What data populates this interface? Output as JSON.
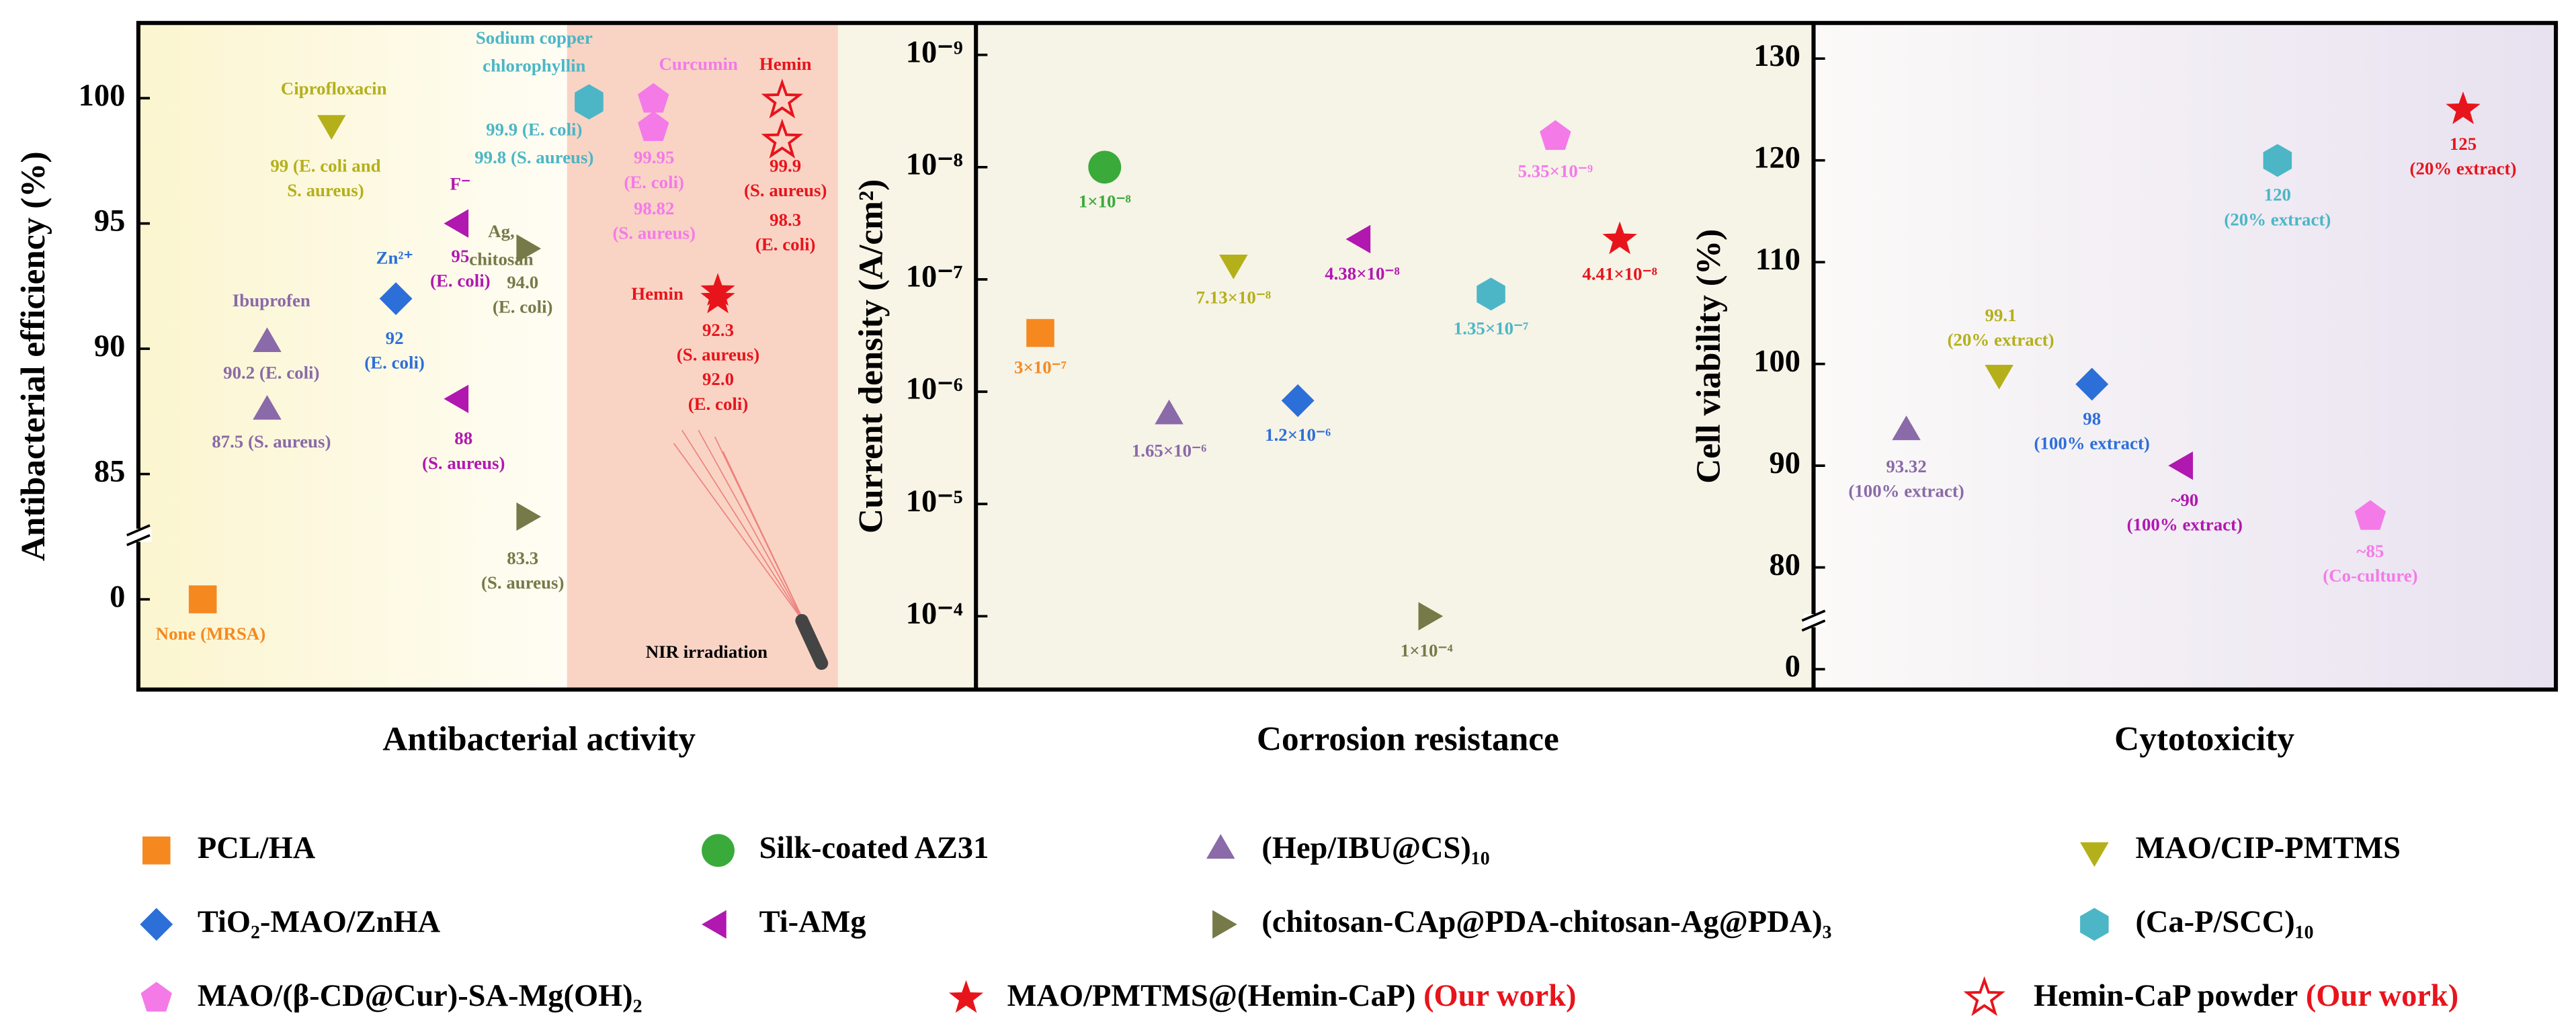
{
  "legend": [
    {
      "name": "PCL/HA",
      "color": "#f5891f",
      "marker": "square"
    },
    {
      "name": "Silk-coated AZ31",
      "color": "#3aaa3a",
      "marker": "circle"
    },
    {
      "name": "(Hep/IBU@CS)₁₀",
      "color": "#8a6aa8",
      "marker": "triangle-up"
    },
    {
      "name": "MAO/CIP-PMTMS",
      "color": "#b4b01a",
      "marker": "triangle-down"
    },
    {
      "name": "TiO₂-MAO/ZnHA",
      "color": "#2d6fd8",
      "marker": "diamond"
    },
    {
      "name": "Ti-AMg",
      "color": "#b018b0",
      "marker": "triangle-left"
    },
    {
      "name": "(chitosan-CAp@PDA-chitosan-Ag@PDA)₃",
      "color": "#767a48",
      "marker": "triangle-right"
    },
    {
      "name": "(Ca-P/SCC)₁₀",
      "color": "#4cb6c6",
      "marker": "hexagon"
    },
    {
      "name": "MAO/(β-CD@Cur)-SA-Mg(OH)₂",
      "color": "#f47ae8",
      "marker": "pentagon"
    },
    {
      "name": "MAO/PMTMS@(Hemin-CaP)",
      "color": "#e8141c",
      "marker": "star",
      "note": "(Our work)"
    },
    {
      "name": "Hemin-CaP powder",
      "color": "#e8141c",
      "marker": "star-open",
      "note": "(Our work)"
    }
  ],
  "chart_data": [
    {
      "type": "scatter",
      "xlabel": "Antibacterial activity",
      "ylabel": "Antibacterial efficiency (%)",
      "ylim": [
        -3.6,
        103
      ],
      "ybreak": [
        0,
        80
      ],
      "yticks": [
        0,
        85,
        90,
        95,
        100
      ],
      "annotation": "NIR irradiation",
      "series": [
        {
          "name": "PCL/HA",
          "values": [
            0
          ],
          "value_labels": [
            [
              "None (MRSA)"
            ]
          ]
        },
        {
          "name": "(Hep/IBU@CS)₁₀",
          "tag": [
            "Ibuprofen"
          ],
          "values": [
            90.2,
            87.5
          ],
          "value_labels": [
            [
              "90.2 (E. coli)"
            ],
            [
              "87.5 (S. aureus)"
            ]
          ]
        },
        {
          "name": "MAO/CIP-PMTMS",
          "tag": [
            "Ciprofloxacin"
          ],
          "values": [
            99
          ],
          "value_labels": [
            [
              "99 (E. coli and",
              "S. aureus)"
            ]
          ]
        },
        {
          "name": "TiO₂-MAO/ZnHA",
          "tag": [
            "Zn²⁺"
          ],
          "values": [
            92
          ],
          "value_labels": [
            [
              "92",
              "(E. coli)"
            ]
          ]
        },
        {
          "name": "Ti-AMg",
          "tag": [
            "F⁻"
          ],
          "values": [
            95,
            88
          ],
          "value_labels": [
            [
              "95",
              "(E. coli)"
            ],
            [
              "88",
              "(S. aureus)"
            ]
          ]
        },
        {
          "name": "(chitosan-CAp@PDA-chitosan-Ag@PDA)₃",
          "tag": [
            "Ag,",
            "chitosan"
          ],
          "values": [
            94.0,
            83.3
          ],
          "value_labels": [
            [
              "94.0",
              "(E. coli)"
            ],
            [
              "83.3",
              "(S. aureus)"
            ]
          ]
        },
        {
          "name": "(Ca-P/SCC)₁₀",
          "tag": [
            "Sodium copper",
            "chlorophyllin"
          ],
          "values": [
            99.9,
            99.8
          ],
          "value_labels": [
            [
              "99.9 (E. coli)"
            ],
            [
              "99.8 (S. aureus)"
            ]
          ]
        },
        {
          "name": "MAO/(β-CD@Cur)-SA-Mg(OH)₂",
          "tag": [
            "Curcumin"
          ],
          "values": [
            99.95,
            98.82
          ],
          "value_labels": [
            [
              "99.95",
              "(E. coli)"
            ],
            [
              "98.82",
              "(S. aureus)"
            ]
          ]
        },
        {
          "name": "MAO/PMTMS@(Hemin-CaP)",
          "tag": [
            "Hemin"
          ],
          "values": [
            92.3,
            92.0
          ],
          "value_labels": [
            [
              "92.3",
              "(S. aureus)"
            ],
            [
              "92.0",
              "(E. coli)"
            ]
          ]
        },
        {
          "name": "Hemin-CaP powder",
          "tag": [
            "Hemin"
          ],
          "values": [
            99.9,
            98.3
          ],
          "value_labels": [
            [
              "99.9",
              "(S. aureus)"
            ],
            [
              "98.3",
              "(E. coli)"
            ]
          ]
        }
      ]
    },
    {
      "type": "scatter",
      "xlabel": "Corrosion resistance",
      "ylabel": "Current density (A/cm²)",
      "ylog": true,
      "yinvert": true,
      "ylim": [
        5.2e-10,
        0.00045
      ],
      "yticks": [
        {
          "value": 1e-09,
          "label": "10⁻⁹"
        },
        {
          "value": 1e-08,
          "label": "10⁻⁸"
        },
        {
          "value": 1e-07,
          "label": "10⁻⁷"
        },
        {
          "value": 1e-06,
          "label": "10⁻⁶"
        },
        {
          "value": 1e-05,
          "label": "10⁻⁵"
        },
        {
          "value": 0.0001,
          "label": "10⁻⁴"
        }
      ],
      "series": [
        {
          "name": "PCL/HA",
          "values": [
            3e-07
          ],
          "value_labels": [
            [
              "3×10⁻⁷"
            ]
          ]
        },
        {
          "name": "Silk-coated AZ31",
          "values": [
            1e-08
          ],
          "value_labels": [
            [
              "1×10⁻⁸"
            ]
          ]
        },
        {
          "name": "(Hep/IBU@CS)₁₀",
          "values": [
            1.65e-06
          ],
          "value_labels": [
            [
              "1.65×10⁻⁶"
            ]
          ]
        },
        {
          "name": "MAO/CIP-PMTMS",
          "values": [
            7.13e-08
          ],
          "value_labels": [
            [
              "7.13×10⁻⁸"
            ]
          ]
        },
        {
          "name": "TiO₂-MAO/ZnHA",
          "values": [
            1.2e-06
          ],
          "value_labels": [
            [
              "1.2×10⁻⁶"
            ]
          ]
        },
        {
          "name": "Ti-AMg",
          "values": [
            4.38e-08
          ],
          "value_labels": [
            [
              "4.38×10⁻⁸"
            ]
          ]
        },
        {
          "name": "(chitosan-CAp@PDA-chitosan-Ag@PDA)₃",
          "values": [
            0.0001
          ],
          "value_labels": [
            [
              "1×10⁻⁴"
            ]
          ]
        },
        {
          "name": "(Ca-P/SCC)₁₀",
          "values": [
            1.35e-07
          ],
          "value_labels": [
            [
              "1.35×10⁻⁷"
            ]
          ]
        },
        {
          "name": "MAO/(β-CD@Cur)-SA-Mg(OH)₂",
          "values": [
            5.35e-09
          ],
          "value_labels": [
            [
              "5.35×10⁻⁹"
            ]
          ]
        },
        {
          "name": "MAO/PMTMS@(Hemin-CaP)",
          "values": [
            4.41e-08
          ],
          "value_labels": [
            [
              "4.41×10⁻⁸"
            ]
          ]
        }
      ]
    },
    {
      "type": "scatter",
      "xlabel": "Cytotoxicity",
      "ylabel": "Cell viability (%)",
      "ylim": [
        -2,
        133.5
      ],
      "ybreak": [
        0,
        70
      ],
      "yticks": [
        0,
        80,
        90,
        100,
        110,
        120,
        130
      ],
      "series": [
        {
          "name": "(Hep/IBU@CS)₁₀",
          "values": [
            93.32
          ],
          "value_labels": [
            [
              "93.32",
              "(100% extract)"
            ]
          ]
        },
        {
          "name": "MAO/CIP-PMTMS",
          "values": [
            99.1
          ],
          "value_labels": [
            [
              "99.1",
              "(20% extract)"
            ]
          ]
        },
        {
          "name": "TiO₂-MAO/ZnHA",
          "values": [
            98
          ],
          "value_labels": [
            [
              "98",
              "(100% extract)"
            ]
          ]
        },
        {
          "name": "Ti-AMg",
          "values": [
            90
          ],
          "value_labels": [
            [
              "~90",
              "(100% extract)"
            ]
          ]
        },
        {
          "name": "(Ca-P/SCC)₁₀",
          "values": [
            120
          ],
          "value_labels": [
            [
              "120",
              "(20% extract)"
            ]
          ]
        },
        {
          "name": "MAO/(β-CD@Cur)-SA-Mg(OH)₂",
          "values": [
            85
          ],
          "value_labels": [
            [
              "~85",
              "(Co-culture)"
            ]
          ]
        },
        {
          "name": "MAO/PMTMS@(Hemin-CaP)",
          "values": [
            125
          ],
          "value_labels": [
            [
              "125",
              "(20% extract)"
            ]
          ]
        }
      ]
    }
  ]
}
